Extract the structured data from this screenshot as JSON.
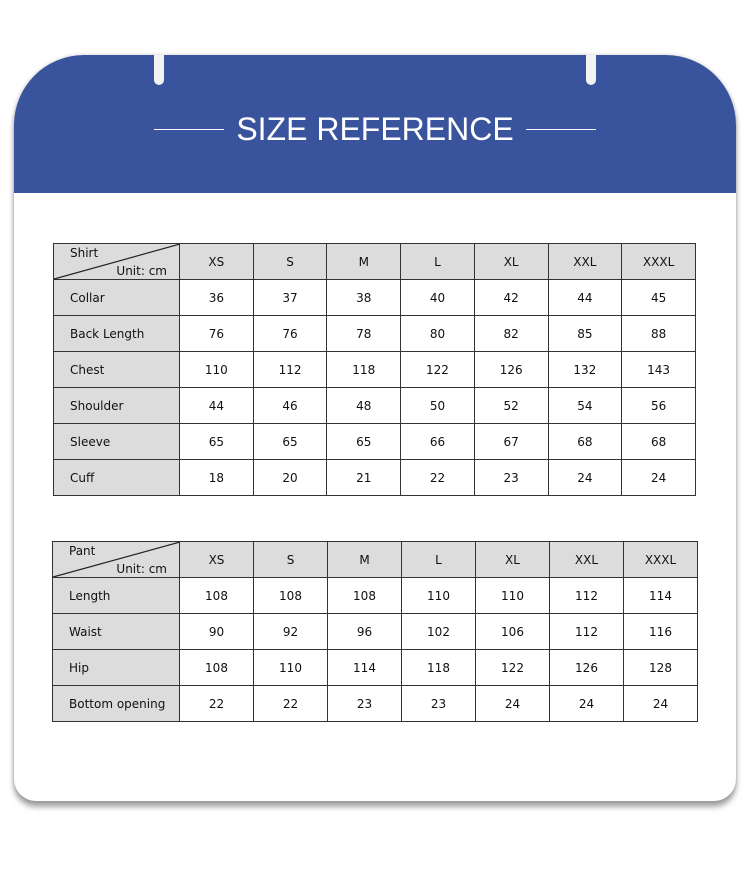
{
  "title": "SIZE REFERENCE",
  "colors": {
    "banner": "#39549d",
    "header_cell": "#dcdcdc"
  },
  "shirt": {
    "corner_label": "Shirt",
    "unit": "Unit: cm",
    "sizes": [
      "XS",
      "S",
      "M",
      "L",
      "XL",
      "XXL",
      "XXXL"
    ],
    "rows": [
      {
        "label": "Collar",
        "values": [
          "36",
          "37",
          "38",
          "40",
          "42",
          "44",
          "45"
        ]
      },
      {
        "label": "Back Length",
        "values": [
          "76",
          "76",
          "78",
          "80",
          "82",
          "85",
          "88"
        ]
      },
      {
        "label": "Chest",
        "values": [
          "110",
          "112",
          "118",
          "122",
          "126",
          "132",
          "143"
        ]
      },
      {
        "label": "Shoulder",
        "values": [
          "44",
          "46",
          "48",
          "50",
          "52",
          "54",
          "56"
        ]
      },
      {
        "label": "Sleeve",
        "values": [
          "65",
          "65",
          "65",
          "66",
          "67",
          "68",
          "68"
        ]
      },
      {
        "label": "Cuff",
        "values": [
          "18",
          "20",
          "21",
          "22",
          "23",
          "24",
          "24"
        ]
      }
    ]
  },
  "pant": {
    "corner_label": "Pant",
    "unit": "Unit: cm",
    "sizes": [
      "XS",
      "S",
      "M",
      "L",
      "XL",
      "XXL",
      "XXXL"
    ],
    "rows": [
      {
        "label": "Length",
        "values": [
          "108",
          "108",
          "108",
          "110",
          "110",
          "112",
          "114"
        ]
      },
      {
        "label": "Waist",
        "values": [
          "90",
          "92",
          "96",
          "102",
          "106",
          "112",
          "116"
        ]
      },
      {
        "label": "Hip",
        "values": [
          "108",
          "110",
          "114",
          "118",
          "122",
          "126",
          "128"
        ]
      },
      {
        "label": "Bottom opening",
        "values": [
          "22",
          "22",
          "23",
          "23",
          "24",
          "24",
          "24"
        ]
      }
    ]
  }
}
